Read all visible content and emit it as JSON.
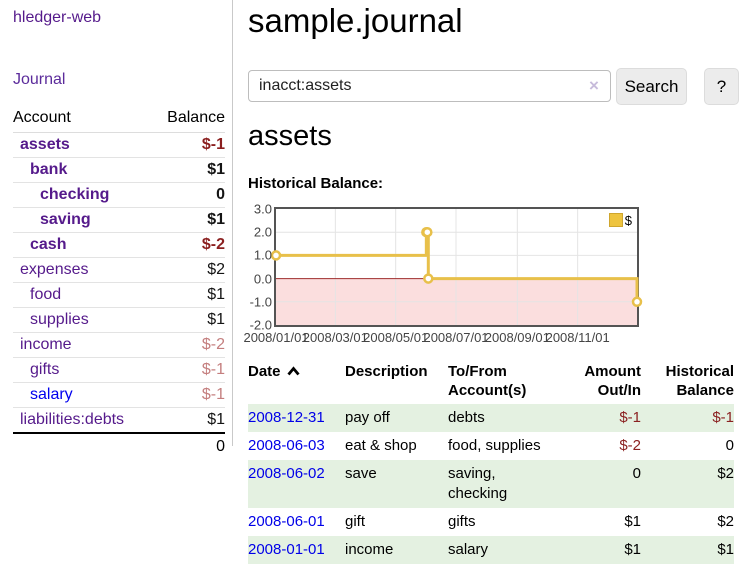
{
  "app": {
    "title": "hledger-web",
    "nav": {
      "journal": "Journal"
    }
  },
  "sidebar": {
    "table_headers": {
      "account": "Account",
      "balance": "Balance"
    },
    "accounts": [
      {
        "name": "assets",
        "balance": "$-1",
        "indent": 1,
        "current": true,
        "balance_tone": "neg-strong",
        "link_tone": "visited"
      },
      {
        "name": "bank",
        "balance": "$1",
        "indent": 2,
        "current": true,
        "balance_tone": "normal",
        "link_tone": "visited"
      },
      {
        "name": "checking",
        "balance": "0",
        "indent": 3,
        "current": true,
        "balance_tone": "normal",
        "link_tone": "visited"
      },
      {
        "name": "saving",
        "balance": "$1",
        "indent": 3,
        "current": true,
        "balance_tone": "normal",
        "link_tone": "visited"
      },
      {
        "name": "cash",
        "balance": "$-2",
        "indent": 2,
        "current": true,
        "balance_tone": "neg-strong",
        "link_tone": "visited"
      },
      {
        "name": "expenses",
        "balance": "$2",
        "indent": 1,
        "current": false,
        "balance_tone": "normal",
        "link_tone": "visited"
      },
      {
        "name": "food",
        "balance": "$1",
        "indent": 2,
        "current": false,
        "balance_tone": "normal",
        "link_tone": "visited"
      },
      {
        "name": "supplies",
        "balance": "$1",
        "indent": 2,
        "current": false,
        "balance_tone": "normal",
        "link_tone": "visited"
      },
      {
        "name": "income",
        "balance": "$-2",
        "indent": 1,
        "current": false,
        "balance_tone": "neg-soft",
        "link_tone": "visited"
      },
      {
        "name": "gifts",
        "balance": "$-1",
        "indent": 2,
        "current": false,
        "balance_tone": "neg-soft",
        "link_tone": "visited"
      },
      {
        "name": "salary",
        "balance": "$-1",
        "indent": 2,
        "current": false,
        "balance_tone": "neg-soft",
        "link_tone": "unvisited"
      },
      {
        "name": "liabilities:debts",
        "balance": "$1",
        "indent": 1,
        "current": false,
        "balance_tone": "normal",
        "link_tone": "visited"
      }
    ],
    "total": "0"
  },
  "main": {
    "title": "sample.journal",
    "search": {
      "value": "inacct:assets",
      "clear_icon": "×",
      "search_button": "Search",
      "help_button": "?"
    },
    "account_heading": "assets",
    "section_label": "Historical Balance:"
  },
  "chart_data": {
    "type": "line",
    "style": "steps",
    "title": "Historical Balance",
    "legend": [
      {
        "label": "$",
        "color": "#eec43f"
      }
    ],
    "x_start": "2008-01-01",
    "x_end": "2008-12-31",
    "x_tick_labels": [
      "2008/01/01",
      "2008/03/01",
      "2008/05/01",
      "2008/07/01",
      "2008/09/01",
      "2008/11/01"
    ],
    "y_tick_labels": [
      "3.0",
      "2.0",
      "1.0",
      "0.0",
      "-1.0",
      "-2.0"
    ],
    "ylim": [
      -2,
      3
    ],
    "series": [
      {
        "name": "$",
        "points": [
          [
            "2008-01-01",
            1
          ],
          [
            "2008-06-01",
            2
          ],
          [
            "2008-06-02",
            2
          ],
          [
            "2008-06-03",
            0
          ],
          [
            "2008-12-31",
            -1
          ]
        ]
      }
    ],
    "colors": {
      "line": "#e8c04a",
      "marker_fill": "#ffffff",
      "negative_region": "#fbdede",
      "zero_line": "#9e2b2b",
      "grid": "#e4e4e4",
      "border": "#545454"
    }
  },
  "register": {
    "headers": {
      "date": "Date",
      "description": "Description",
      "account": "To/From Account(s)",
      "amount": "Amount Out/In",
      "balance": "Historical Balance"
    },
    "rows": [
      {
        "date": "2008-12-31",
        "description": "pay off",
        "accounts": "debts",
        "amount": "$-1",
        "balance": "$-1",
        "amount_negative": true,
        "balance_negative": true
      },
      {
        "date": "2008-06-03",
        "description": "eat & shop",
        "accounts": "food, supplies",
        "amount": "$-2",
        "balance": "0",
        "amount_negative": true,
        "balance_negative": false
      },
      {
        "date": "2008-06-02",
        "description": "save",
        "accounts": "saving,\nchecking",
        "amount": "0",
        "balance": "$2",
        "amount_negative": false,
        "balance_negative": false
      },
      {
        "date": "2008-06-01",
        "description": "gift",
        "accounts": "gifts",
        "amount": "$1",
        "balance": "$2",
        "amount_negative": false,
        "balance_negative": false
      },
      {
        "date": "2008-01-01",
        "description": "income",
        "accounts": "salary",
        "amount": "$1",
        "balance": "$1",
        "amount_negative": false,
        "balance_negative": false
      }
    ]
  }
}
